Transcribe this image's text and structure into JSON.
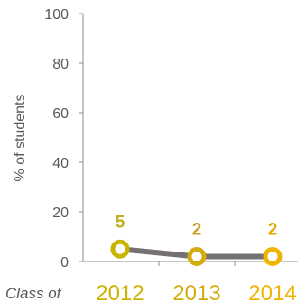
{
  "chart_data": {
    "type": "line",
    "categories": [
      "2012",
      "2013",
      "2014"
    ],
    "x_prefix": "Class of",
    "ylabel": "% of students",
    "ylim": [
      0,
      100
    ],
    "yticks": [
      0,
      20,
      40,
      60,
      80,
      100
    ],
    "grid": false,
    "series": [
      {
        "values": [
          5,
          2,
          2
        ],
        "data_labels": [
          "5",
          "2",
          "2"
        ],
        "line_color": "#767171",
        "marker_colors": [
          "#C9B400",
          "#D4AC0D",
          "#F0B400"
        ]
      }
    ],
    "label_colors": [
      "#BFAE1E",
      "#C9A227",
      "#E5A800"
    ]
  }
}
